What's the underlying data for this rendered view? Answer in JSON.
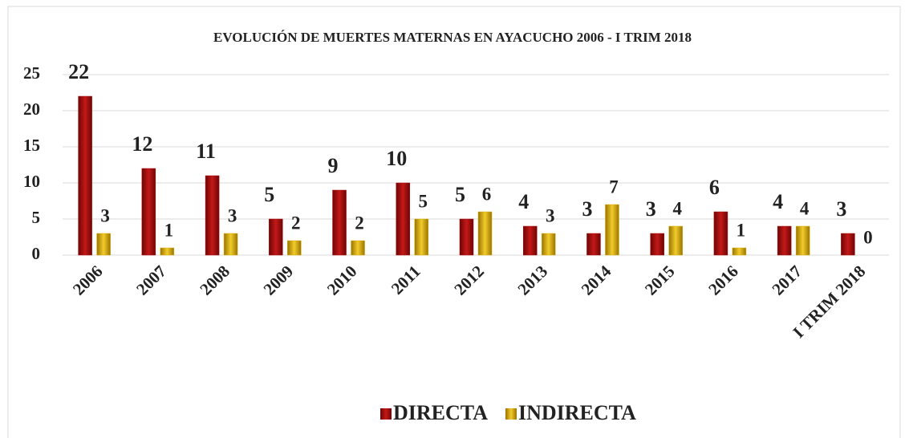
{
  "chart_data": {
    "type": "bar",
    "title": "EVOLUCIÓN DE MUERTES MATERNAS EN AYACUCHO 2006 - I TRIM 2018",
    "categories": [
      "2006",
      "2007",
      "2008",
      "2009",
      "2010",
      "2011",
      "2012",
      "2013",
      "2014",
      "2015",
      "2016",
      "2017",
      "I TRIM 2018"
    ],
    "series": [
      {
        "name": "DIRECTA",
        "color": "#a80f0f",
        "values": [
          22,
          12,
          11,
          5,
          9,
          10,
          5,
          4,
          3,
          3,
          6,
          4,
          3
        ]
      },
      {
        "name": "INDIRECTA",
        "color": "#d9ad0a",
        "values": [
          3,
          1,
          3,
          2,
          2,
          5,
          6,
          3,
          7,
          4,
          1,
          4,
          0
        ]
      }
    ],
    "ylim": [
      0,
      25
    ],
    "yticks": [
      0,
      5,
      10,
      15,
      20,
      25
    ],
    "grid": true,
    "legend": "bottom"
  }
}
